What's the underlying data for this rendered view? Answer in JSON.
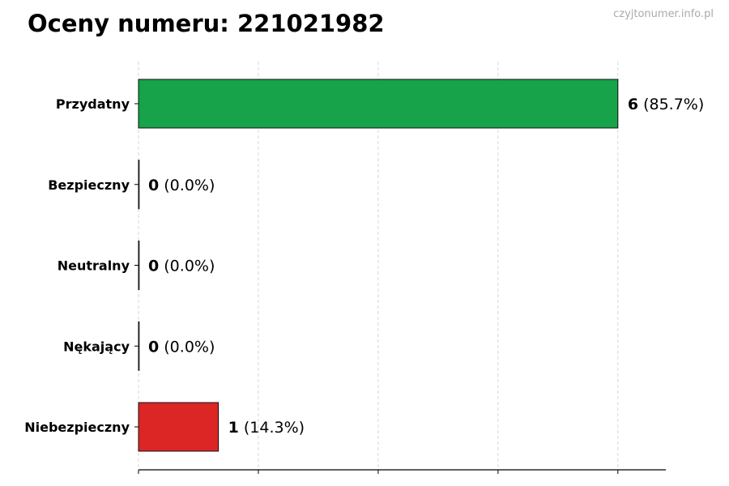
{
  "title": "Oceny numeru: 221021982",
  "watermark": "czyjtonumer.info.pl",
  "chart_data": {
    "type": "bar",
    "orientation": "horizontal",
    "categories": [
      "Przydatny",
      "Bezpieczny",
      "Neutralny",
      "Nękający",
      "Niebezpieczny"
    ],
    "values": [
      6,
      0,
      0,
      0,
      1
    ],
    "labels": [
      "(85.7%)",
      "(0.0%)",
      "(0.0%)",
      "(0.0%)",
      "(14.3%)"
    ],
    "colors": [
      "#16a34a",
      "#9ca3af",
      "#6b7280",
      "#f97316",
      "#dc2626"
    ],
    "xlim": [
      0,
      6.6
    ],
    "xticks": [
      0,
      1.5,
      3,
      4.5,
      6
    ],
    "xtick_labels_shown": false,
    "grid": "vertical dashed",
    "legend": "none"
  }
}
